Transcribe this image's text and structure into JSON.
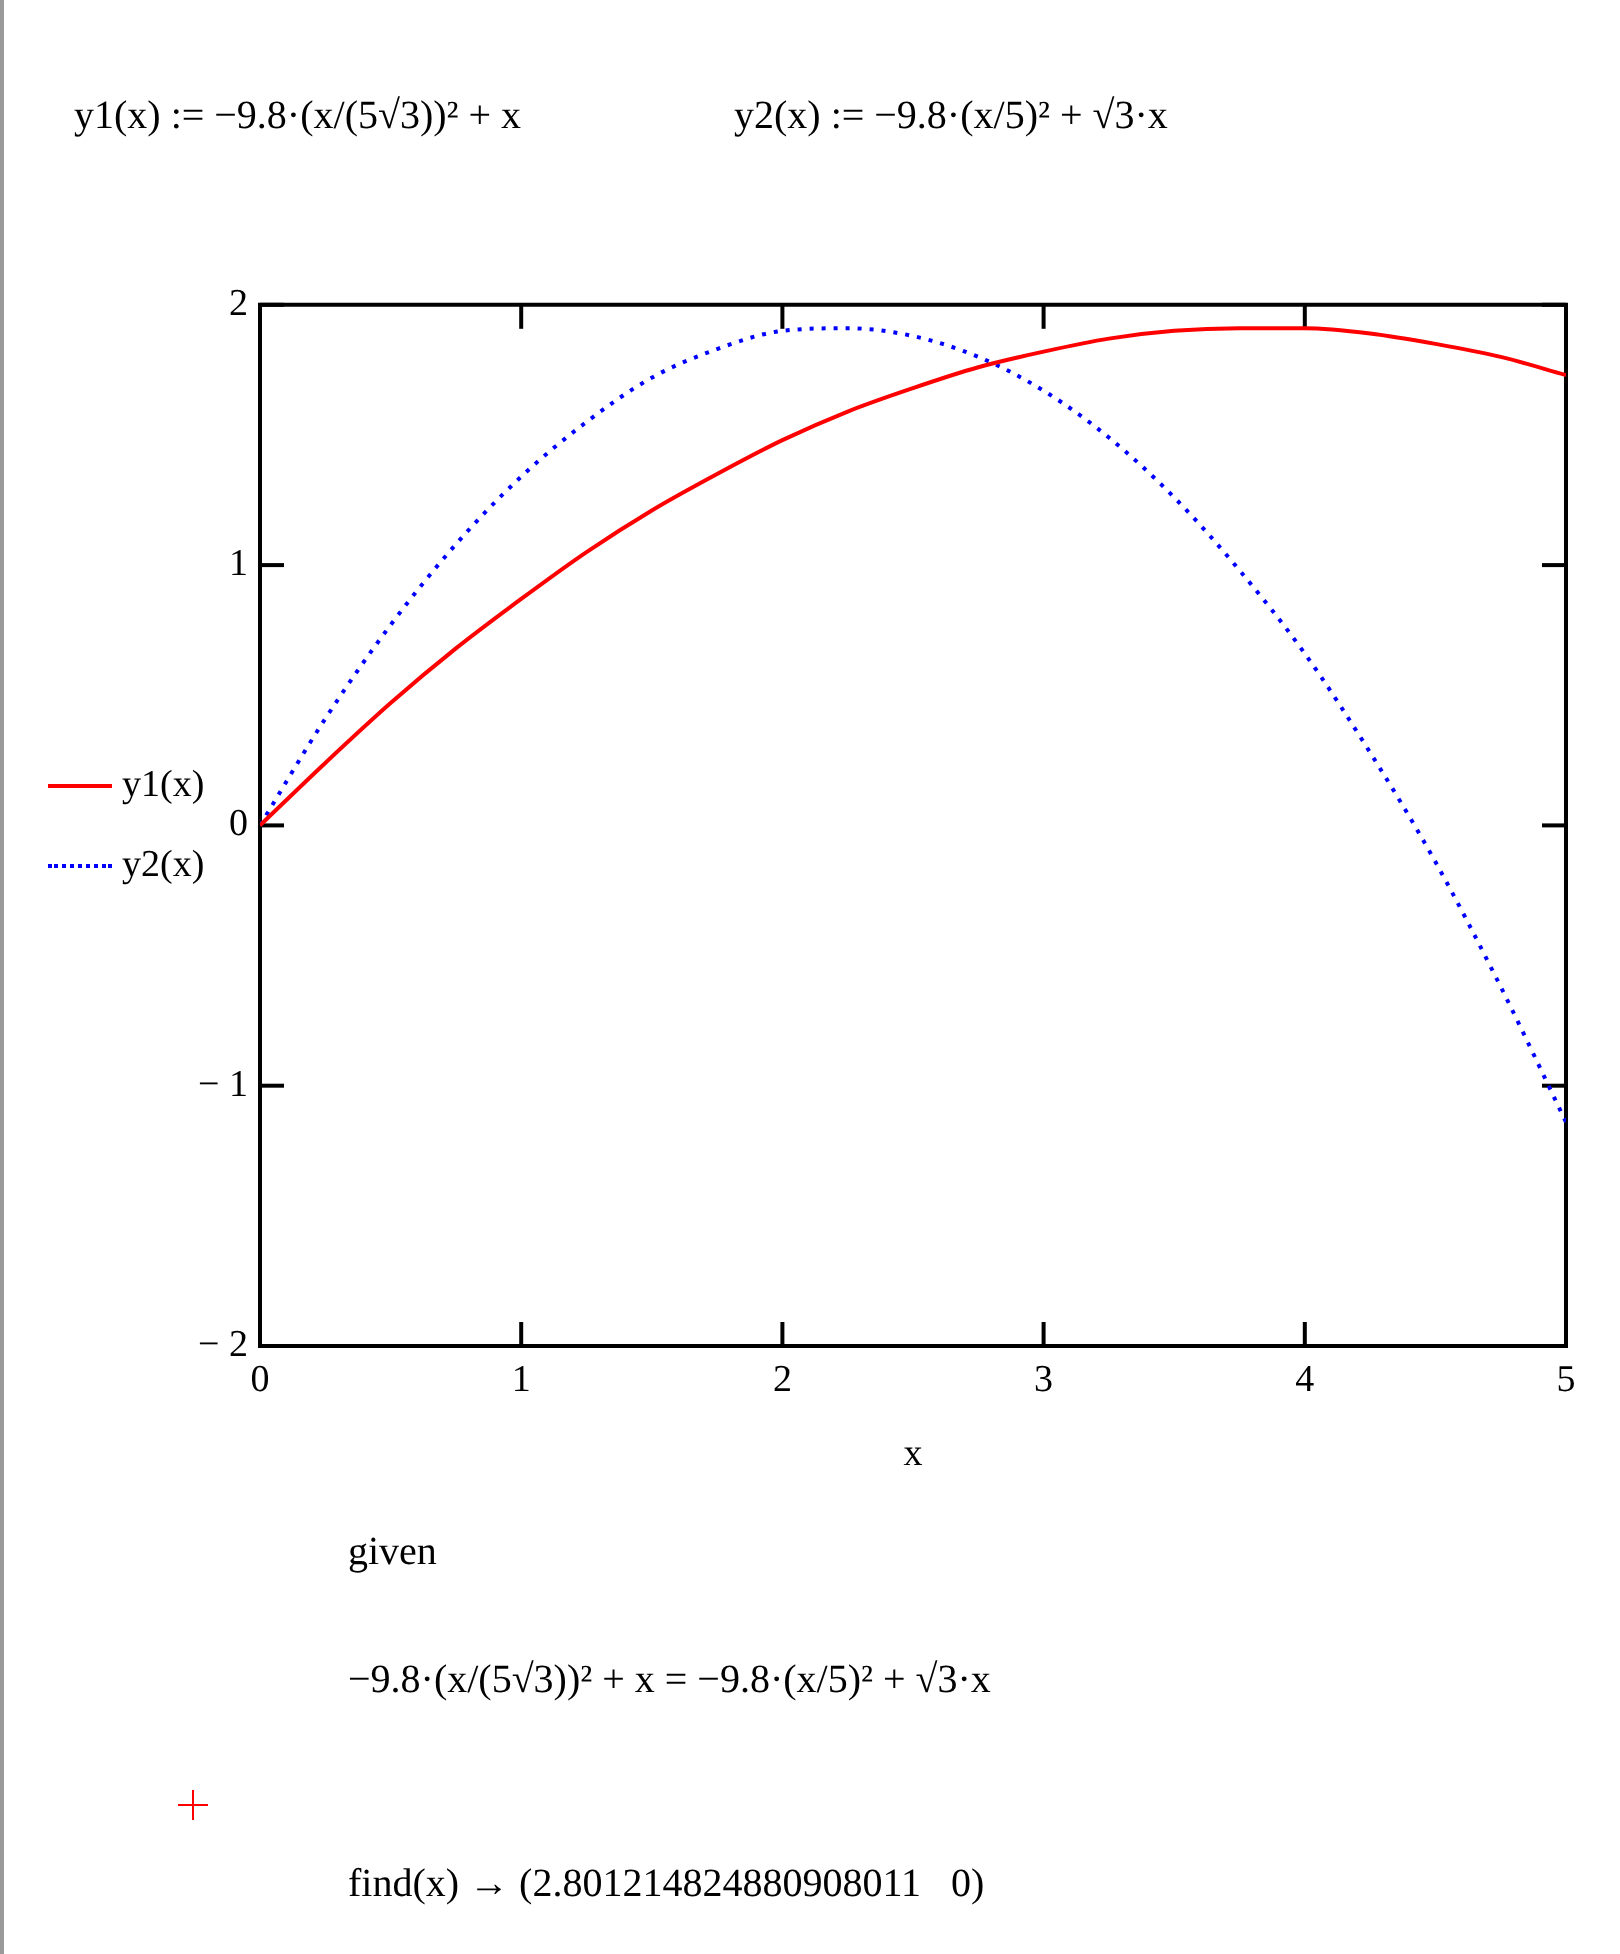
{
  "chart_data": {
    "type": "line",
    "xlabel": "x",
    "x": [
      0,
      0.25,
      0.5,
      0.75,
      1,
      1.25,
      1.5,
      1.75,
      2,
      2.25,
      2.5,
      2.75,
      3,
      3.25,
      3.5,
      3.75,
      4,
      4.25,
      4.5,
      4.75,
      5
    ],
    "series": [
      {
        "name": "y1(x)",
        "color": "#ff0000",
        "line_style": "solid",
        "values": [
          0,
          0.24,
          0.47,
          0.68,
          0.87,
          1.05,
          1.21,
          1.35,
          1.48,
          1.59,
          1.68,
          1.76,
          1.82,
          1.87,
          1.9,
          1.91,
          1.91,
          1.89,
          1.85,
          1.8,
          1.73
        ]
      },
      {
        "name": "y2(x)",
        "color": "#0000ff",
        "line_style": "dotted",
        "values": [
          0,
          0.41,
          0.77,
          1.08,
          1.34,
          1.55,
          1.72,
          1.83,
          1.9,
          1.91,
          1.88,
          1.8,
          1.67,
          1.49,
          1.26,
          0.98,
          0.66,
          0.28,
          -0.14,
          -0.62,
          -1.14
        ]
      }
    ],
    "xlim": [
      0,
      5
    ],
    "xticks": [
      0,
      1,
      2,
      3,
      4,
      5
    ],
    "ylim": [
      -2,
      2
    ],
    "yticks": [
      {
        "value": -2,
        "label": "− 2"
      },
      {
        "value": -1,
        "label": "− 1"
      },
      0,
      1,
      2
    ],
    "legend": "left",
    "marker": "none",
    "annotations": [
      "y1(x) := −9.8·(x/(5√3))² + x",
      "y2(x) := −9.8·(x/5)² + √3·x",
      "given",
      "−9.8·(x/(5√3))² + x = −9.8·(x/5)² + √3·x",
      "find(x) → (2.801214824880908011   0)"
    ]
  }
}
